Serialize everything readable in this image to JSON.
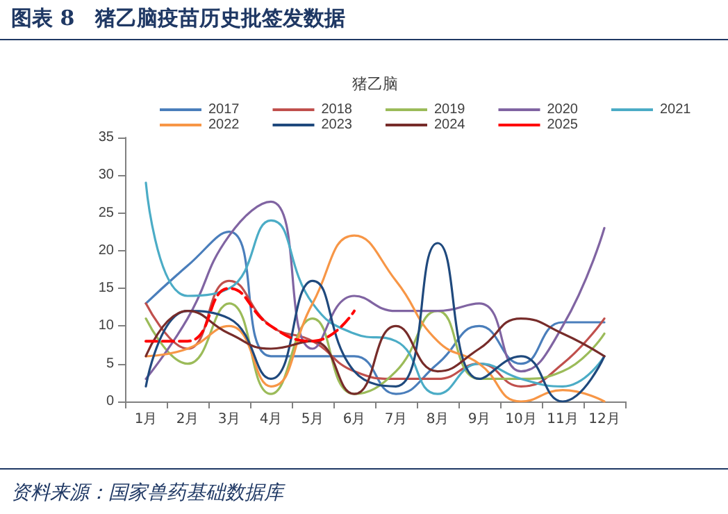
{
  "chart_data": {
    "type": "line",
    "title": "图表 8　猪乙脑疫苗历史批签发数据",
    "subtitle": "猪乙脑",
    "annotations": [
      "资料来源：国家兽药基础数据库"
    ],
    "categories": [
      "1月",
      "2月",
      "3月",
      "4月",
      "5月",
      "6月",
      "7月",
      "8月",
      "9月",
      "10月",
      "11月",
      "12月"
    ],
    "ylim": [
      0,
      35
    ],
    "yticks": [
      0,
      5,
      10,
      15,
      20,
      25,
      30,
      35
    ],
    "grid": false,
    "legend": "top",
    "marker": "none",
    "line_style": "solid",
    "series": [
      {
        "name": "2017",
        "color": "#4a7ebb",
        "values": [
          13,
          18,
          22.5,
          6,
          6,
          6,
          1,
          5,
          10,
          5,
          10.5,
          10.5
        ]
      },
      {
        "name": "2018",
        "color": "#c0504d",
        "values": [
          13,
          7,
          16,
          10,
          8,
          4,
          3,
          3,
          5,
          2,
          5,
          11
        ]
      },
      {
        "name": "2019",
        "color": "#9bbb59",
        "values": [
          11,
          5,
          13,
          1,
          11,
          1,
          4,
          12,
          3,
          3,
          4,
          9
        ]
      },
      {
        "name": "2020",
        "color": "#8064a2",
        "values": [
          3,
          11,
          22,
          26.5,
          7,
          14,
          12,
          12,
          13,
          4,
          10,
          23
        ]
      },
      {
        "name": "2021",
        "color": "#4bacc6",
        "values": [
          29,
          14,
          15,
          24,
          13,
          9,
          8,
          1,
          5,
          3,
          2,
          6
        ]
      },
      {
        "name": "2022",
        "color": "#f79646",
        "values": [
          6,
          7,
          10,
          2,
          13,
          22,
          16,
          8,
          5,
          0,
          1.5,
          0
        ]
      },
      {
        "name": "2023",
        "color": "#1f497d",
        "values": [
          2,
          12,
          11,
          3,
          16,
          4,
          2,
          21,
          3,
          6,
          0,
          6
        ]
      },
      {
        "name": "2024",
        "color": "#772c2a",
        "values": [
          6,
          12,
          9,
          7,
          8,
          1,
          10,
          4,
          7,
          11,
          9,
          6
        ]
      },
      {
        "name": "2025",
        "color": "#ff0000",
        "line_style": "dashed",
        "values": [
          8,
          8,
          15,
          10,
          8,
          12,
          null,
          null,
          null,
          null,
          null,
          null
        ]
      }
    ]
  }
}
